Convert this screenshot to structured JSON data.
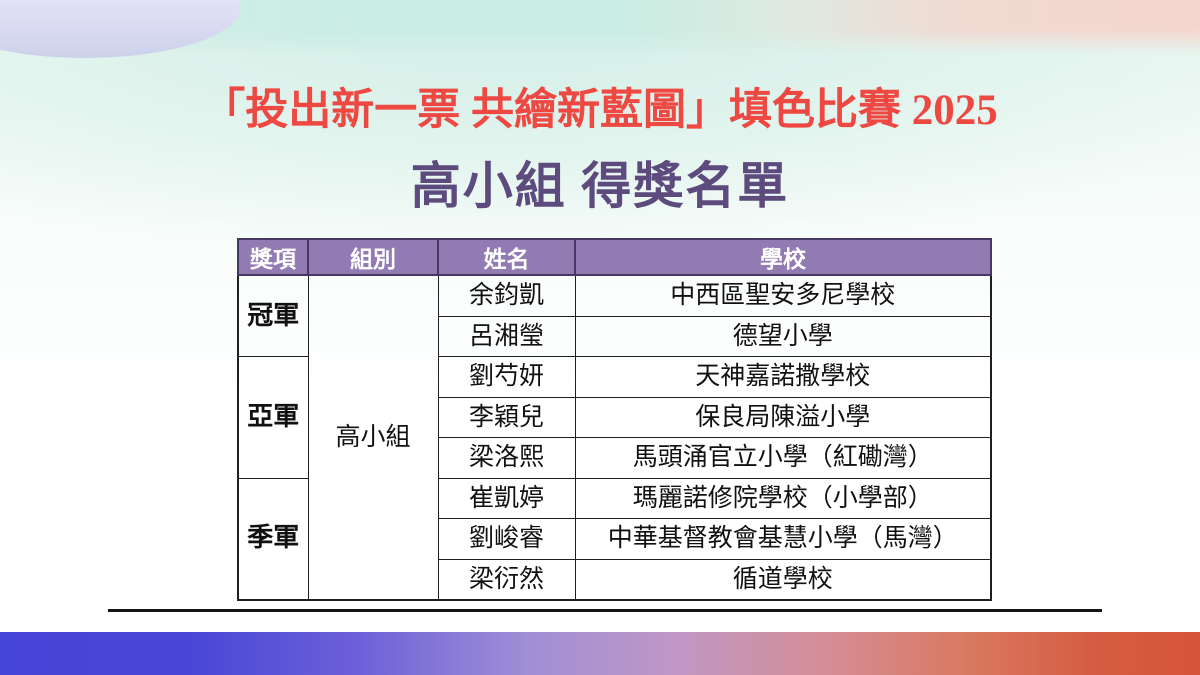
{
  "slide": {
    "title": "「投出新一票 共繪新藍圖」填色比賽 2025",
    "subtitle": "高小組  得獎名單",
    "colors": {
      "title_red": "#ee4843",
      "subtitle_purple": "#5d4b7e",
      "table_header_bg": "#927ab3",
      "table_header_text": "#ffffff",
      "table_border": "#1f1f1f",
      "bottom_band_left": "#4444d6",
      "bottom_band_right": "#d5543a",
      "top_ribbon_mint": "#c9ece3",
      "top_ribbon_pink": "#f4d6ce"
    },
    "table": {
      "headers": [
        "獎項",
        "組別",
        "姓名",
        "學校"
      ],
      "group_label": "高小組",
      "awards": [
        {
          "award": "冠軍",
          "winners": [
            {
              "name": "余鈞凱",
              "school": "中西區聖安多尼學校"
            },
            {
              "name": "呂湘瑩",
              "school": "德望小學"
            }
          ]
        },
        {
          "award": "亞軍",
          "winners": [
            {
              "name": "劉芍妍",
              "school": "天神嘉諾撒學校"
            },
            {
              "name": "李穎兒",
              "school": "保良局陳溢小學"
            },
            {
              "name": "梁洛熙",
              "school": "馬頭涌官立小學（紅磡灣）"
            }
          ]
        },
        {
          "award": "季軍",
          "winners": [
            {
              "name": "崔凱婷",
              "school": "瑪麗諾修院學校（小學部）"
            },
            {
              "name": "劉峻睿",
              "school": "中華基督教會基慧小學（馬灣）"
            },
            {
              "name": "梁衍然",
              "school": "循道學校"
            }
          ]
        }
      ]
    }
  }
}
